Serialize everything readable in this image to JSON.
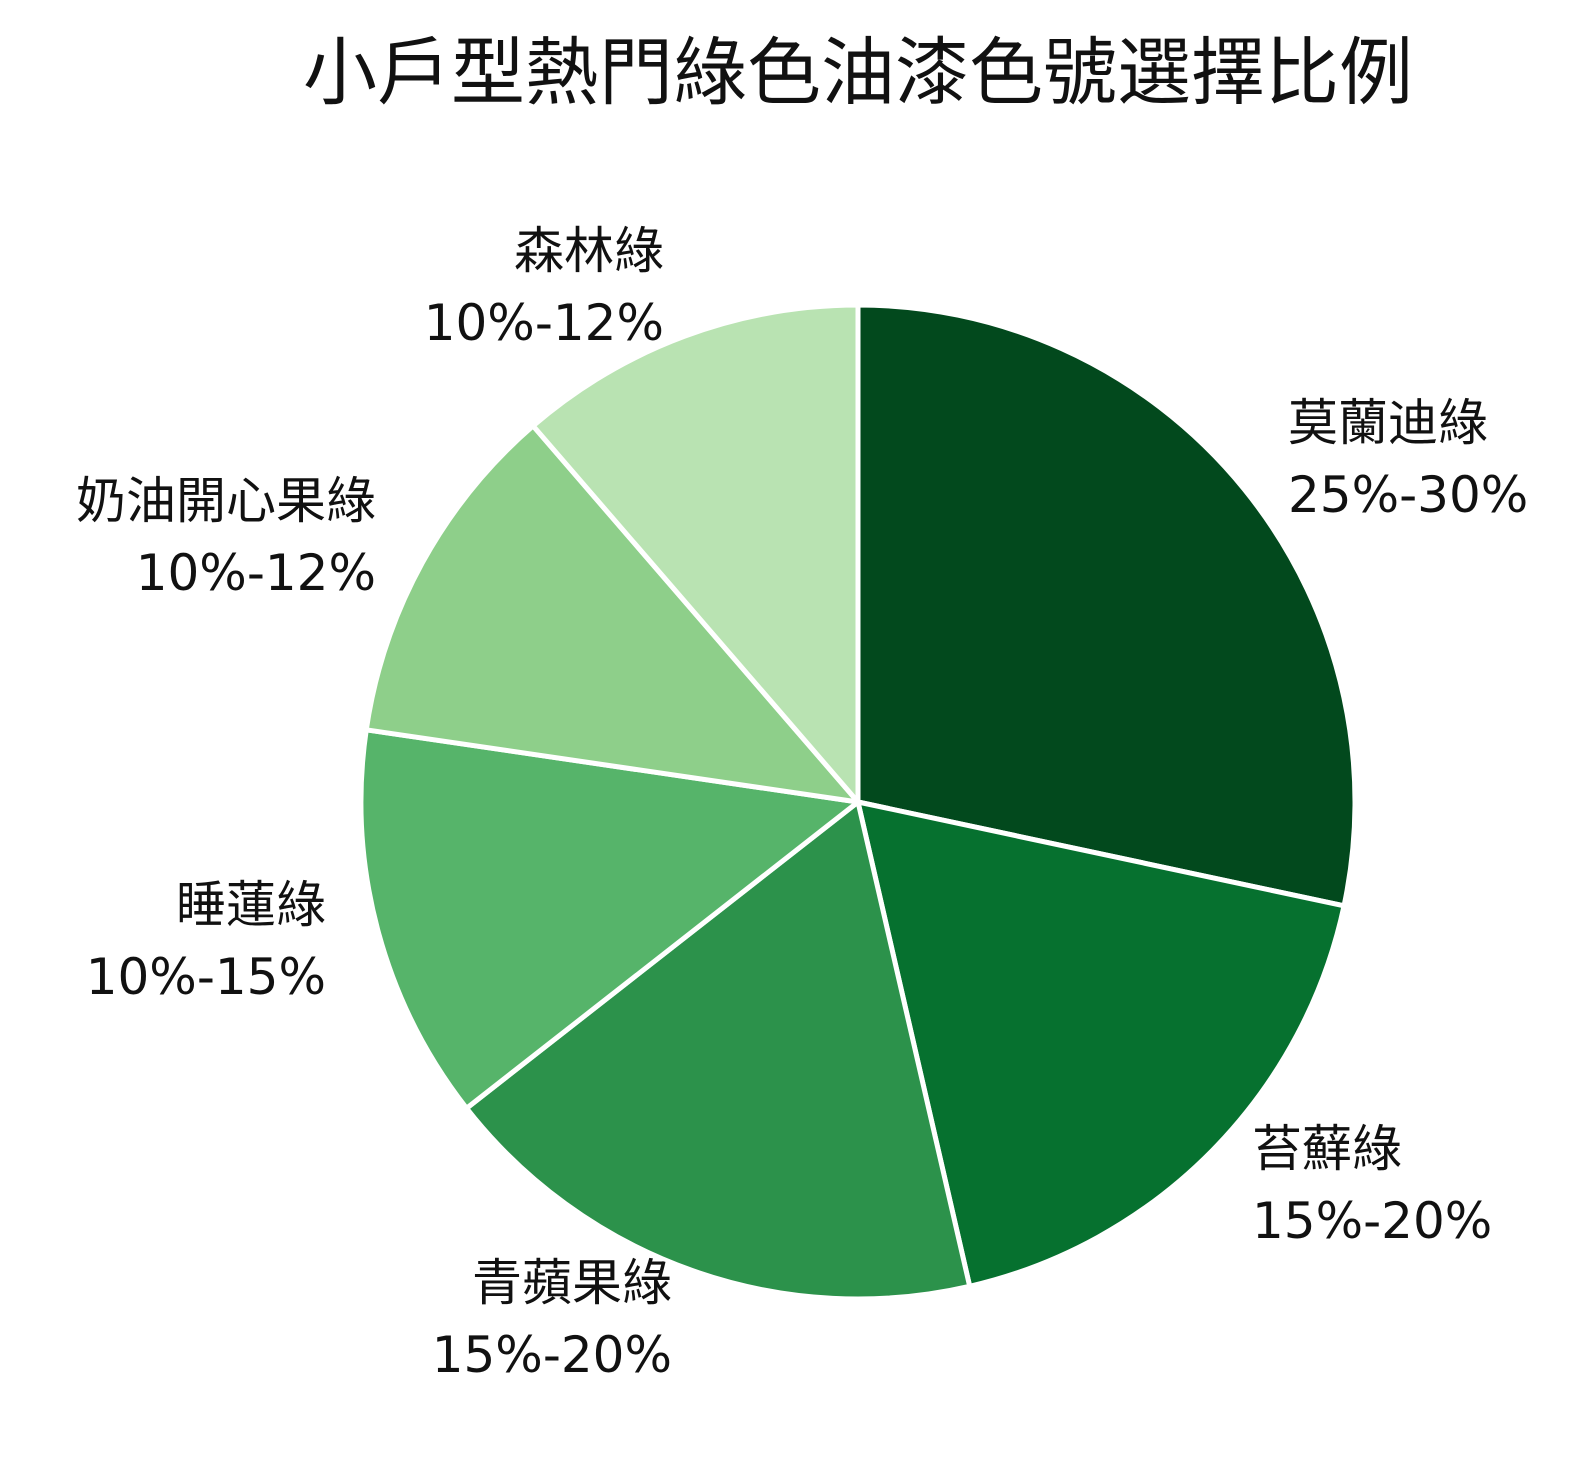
{
  "chart_data": {
    "type": "pie",
    "title": "小戶型熱門綠色油漆色號選擇比例",
    "start_angle": "12 o'clock",
    "direction": "clockwise",
    "slices": [
      {
        "label": "莫蘭迪綠",
        "range_text": "25%-30%",
        "value": 27.5,
        "color": "#02491d"
      },
      {
        "label": "苔蘚綠",
        "range_text": "15%-20%",
        "value": 17.5,
        "color": "#06712f"
      },
      {
        "label": "青蘋果綠",
        "range_text": "15%-20%",
        "value": 17.5,
        "color": "#2c924b"
      },
      {
        "label": "睡蓮綠",
        "range_text": "10%-15%",
        "value": 12.5,
        "color": "#56b46a"
      },
      {
        "label": "奶油開心果綠",
        "range_text": "10%-12%",
        "value": 11.0,
        "color": "#8ecf8a"
      },
      {
        "label": "森林綠",
        "range_text": "10%-12%",
        "value": 11.0,
        "color": "#b9e3b2"
      }
    ],
    "legend": "none",
    "separator_color": "#ffffff"
  }
}
